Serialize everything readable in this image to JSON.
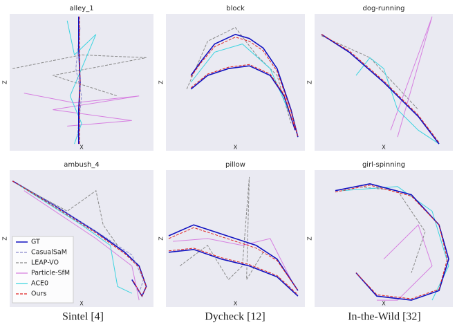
{
  "chart_data": [
    {
      "type": "line",
      "title": "alley_1",
      "xlabel": "X",
      "ylabel": "Z",
      "xlim": [
        0,
        1
      ],
      "ylim": [
        0,
        1
      ],
      "series": [
        {
          "name": "LEAP-VO",
          "color": "#888888",
          "dashed": true,
          "x": [
            0.02,
            0.5,
            0.95,
            0.3,
            0.75
          ],
          "values": [
            0.6,
            0.7,
            0.68,
            0.55,
            0.4
          ]
        },
        {
          "name": "Particle-SfM",
          "color": "#d67ee0",
          "dashed": false,
          "x": [
            0.1,
            0.45,
            0.9,
            0.3,
            0.85,
            0.4
          ],
          "values": [
            0.42,
            0.35,
            0.4,
            0.3,
            0.22,
            0.18
          ]
        },
        {
          "name": "ACE0",
          "color": "#3ad4e0",
          "dashed": false,
          "x": [
            0.4,
            0.45,
            0.6,
            0.42,
            0.5,
            0.45
          ],
          "values": [
            0.95,
            0.7,
            0.85,
            0.4,
            0.2,
            0.05
          ]
        },
        {
          "name": "CasualSaM",
          "color": "#8a8acb",
          "dashed": true,
          "x": [
            0.47,
            0.5,
            0.46,
            0.49
          ],
          "values": [
            0.1,
            0.4,
            0.6,
            0.9
          ]
        },
        {
          "name": "GT",
          "color": "#1010c0",
          "dashed": false,
          "x": [
            0.48,
            0.48,
            0.49,
            0.48,
            0.48
          ],
          "values": [
            0.05,
            0.3,
            0.5,
            0.75,
            0.98
          ]
        },
        {
          "name": "Ours",
          "color": "#e02020",
          "dashed": true,
          "x": [
            0.485,
            0.485,
            0.49,
            0.485,
            0.485
          ],
          "values": [
            0.05,
            0.3,
            0.5,
            0.75,
            0.98
          ]
        }
      ]
    },
    {
      "type": "line",
      "title": "block",
      "xlabel": "X",
      "ylabel": "Z",
      "xlim": [
        0,
        1
      ],
      "ylim": [
        0,
        1
      ],
      "series": [
        {
          "name": "LEAP-VO",
          "color": "#888888",
          "dashed": true,
          "x": [
            0.15,
            0.3,
            0.5,
            0.65,
            0.8,
            0.9
          ],
          "values": [
            0.45,
            0.8,
            0.9,
            0.7,
            0.55,
            0.2
          ]
        },
        {
          "name": "ACE0",
          "color": "#3ad4e0",
          "dashed": false,
          "x": [
            0.18,
            0.35,
            0.55,
            0.75,
            0.9
          ],
          "values": [
            0.5,
            0.72,
            0.78,
            0.6,
            0.25
          ]
        },
        {
          "name": "GT",
          "color": "#1010c0",
          "dashed": false,
          "x": [
            0.18,
            0.25,
            0.35,
            0.5,
            0.6,
            0.7,
            0.8,
            0.9,
            0.95,
            null,
            0.18,
            0.3,
            0.45,
            0.6,
            0.75,
            0.85,
            0.93
          ],
          "values": [
            0.55,
            0.65,
            0.78,
            0.85,
            0.82,
            0.75,
            0.6,
            0.3,
            0.1,
            null,
            0.45,
            0.55,
            0.6,
            0.62,
            0.55,
            0.4,
            0.15
          ]
        },
        {
          "name": "Ours",
          "color": "#e02020",
          "dashed": true,
          "x": [
            0.18,
            0.25,
            0.35,
            0.5,
            0.6,
            0.7,
            0.8,
            0.9,
            0.95,
            null,
            0.18,
            0.3,
            0.45,
            0.6,
            0.75,
            0.85,
            0.93
          ],
          "values": [
            0.54,
            0.64,
            0.76,
            0.83,
            0.8,
            0.73,
            0.58,
            0.29,
            0.1,
            null,
            0.46,
            0.56,
            0.61,
            0.63,
            0.56,
            0.41,
            0.16
          ]
        }
      ]
    },
    {
      "type": "line",
      "title": "dog-running",
      "xlabel": "X",
      "ylabel": "Z",
      "xlim": [
        0,
        1
      ],
      "ylim": [
        0,
        1
      ],
      "series": [
        {
          "name": "LEAP-VO",
          "color": "#888888",
          "dashed": true,
          "x": [
            0.05,
            0.4,
            0.75
          ],
          "values": [
            0.84,
            0.68,
            0.3
          ]
        },
        {
          "name": "Particle-SfM",
          "color": "#d67ee0",
          "dashed": false,
          "x": [
            0.55,
            0.85,
            0.6
          ],
          "values": [
            0.15,
            0.98,
            0.1
          ]
        },
        {
          "name": "ACE0",
          "color": "#3ad4e0",
          "dashed": false,
          "x": [
            0.3,
            0.4,
            0.5,
            0.6,
            0.75,
            0.9
          ],
          "values": [
            0.55,
            0.68,
            0.6,
            0.3,
            0.15,
            0.05
          ]
        },
        {
          "name": "GT",
          "color": "#1010c0",
          "dashed": false,
          "x": [
            0.05,
            0.25,
            0.5,
            0.75,
            0.9
          ],
          "values": [
            0.85,
            0.72,
            0.5,
            0.25,
            0.05
          ]
        },
        {
          "name": "Ours",
          "color": "#e02020",
          "dashed": true,
          "x": [
            0.05,
            0.25,
            0.5,
            0.75,
            0.9
          ],
          "values": [
            0.85,
            0.73,
            0.51,
            0.26,
            0.06
          ]
        }
      ]
    },
    {
      "type": "line",
      "title": "ambush_4",
      "xlabel": "X",
      "ylabel": "Z",
      "xlim": [
        0,
        1
      ],
      "ylim": [
        0,
        1
      ],
      "legend": "lower left",
      "series": [
        {
          "name": "GT",
          "color": "#1010c0",
          "dashed": false,
          "x": [
            0.02,
            0.3,
            0.6,
            0.8,
            0.9,
            0.95,
            0.92,
            0.85
          ],
          "values": [
            0.92,
            0.75,
            0.55,
            0.4,
            0.3,
            0.15,
            0.08,
            0.2
          ]
        },
        {
          "name": "CasualSaM",
          "color": "#8a8acb",
          "dashed": true,
          "x": [
            0.05,
            0.35,
            0.65,
            0.85,
            0.93,
            0.9
          ],
          "values": [
            0.9,
            0.72,
            0.52,
            0.38,
            0.2,
            0.1
          ]
        },
        {
          "name": "LEAP-VO",
          "color": "#888888",
          "dashed": true,
          "x": [
            0.05,
            0.4,
            0.6,
            0.65,
            0.75
          ],
          "values": [
            0.9,
            0.7,
            0.85,
            0.6,
            0.45
          ]
        },
        {
          "name": "Particle-SfM",
          "color": "#d67ee0",
          "dashed": false,
          "x": [
            0.1,
            0.6,
            0.85,
            0.9
          ],
          "values": [
            0.85,
            0.5,
            0.3,
            0.05
          ]
        },
        {
          "name": "ACE0",
          "color": "#3ad4e0",
          "dashed": false,
          "x": [
            0.05,
            0.5,
            0.7,
            0.75,
            0.85
          ],
          "values": [
            0.9,
            0.6,
            0.45,
            0.15,
            0.1
          ]
        },
        {
          "name": "Ours",
          "color": "#e02020",
          "dashed": true,
          "x": [
            0.02,
            0.3,
            0.6,
            0.8,
            0.9,
            0.95,
            0.92,
            0.86
          ],
          "values": [
            0.92,
            0.74,
            0.54,
            0.39,
            0.29,
            0.15,
            0.08,
            0.19
          ]
        }
      ]
    },
    {
      "type": "line",
      "title": "pillow",
      "xlabel": "X",
      "ylabel": "Z",
      "xlim": [
        0,
        1
      ],
      "ylim": [
        0,
        1
      ],
      "series": [
        {
          "name": "LEAP-VO",
          "color": "#888888",
          "dashed": true,
          "x": [
            0.1,
            0.3,
            0.45,
            0.55,
            0.6,
            0.58,
            0.7
          ],
          "values": [
            0.3,
            0.45,
            0.2,
            0.3,
            0.95,
            0.2,
            0.4
          ]
        },
        {
          "name": "Particle-SfM",
          "color": "#d67ee0",
          "dashed": false,
          "x": [
            0.05,
            0.3,
            0.55,
            0.75,
            0.9
          ],
          "values": [
            0.48,
            0.5,
            0.45,
            0.5,
            0.2
          ]
        },
        {
          "name": "GT",
          "color": "#1010c0",
          "dashed": false,
          "x": [
            0.02,
            0.2,
            0.35,
            0.5,
            0.65,
            0.8,
            0.95,
            null,
            0.02,
            0.2,
            0.4,
            0.6,
            0.8,
            0.95
          ],
          "values": [
            0.52,
            0.6,
            0.55,
            0.5,
            0.45,
            0.35,
            0.12,
            null,
            0.4,
            0.42,
            0.35,
            0.3,
            0.22,
            0.08
          ]
        },
        {
          "name": "Ours",
          "color": "#e02020",
          "dashed": true,
          "x": [
            0.02,
            0.2,
            0.35,
            0.5,
            0.65,
            0.8,
            0.95,
            null,
            0.02,
            0.2,
            0.4,
            0.6,
            0.8,
            0.95
          ],
          "values": [
            0.5,
            0.58,
            0.53,
            0.48,
            0.43,
            0.34,
            0.12,
            null,
            0.41,
            0.43,
            0.36,
            0.31,
            0.23,
            0.09
          ]
        }
      ]
    },
    {
      "type": "line",
      "title": "girl-spinning",
      "xlabel": "X",
      "ylabel": "Z",
      "xlim": [
        0,
        1
      ],
      "ylim": [
        0,
        1
      ],
      "series": [
        {
          "name": "LEAP-VO",
          "color": "#888888",
          "dashed": true,
          "x": [
            0.3,
            0.6,
            0.8,
            0.7
          ],
          "values": [
            0.88,
            0.85,
            0.55,
            0.25
          ]
        },
        {
          "name": "Particle-SfM",
          "color": "#d67ee0",
          "dashed": false,
          "x": [
            0.5,
            0.75,
            0.85,
            0.6,
            0.45
          ],
          "values": [
            0.35,
            0.6,
            0.3,
            0.05,
            0.05
          ]
        },
        {
          "name": "ACE0",
          "color": "#3ad4e0",
          "dashed": false,
          "x": [
            0.2,
            0.6,
            0.85,
            0.97,
            0.85
          ],
          "values": [
            0.85,
            0.88,
            0.7,
            0.3,
            0.05
          ]
        },
        {
          "name": "GT",
          "color": "#1010c0",
          "dashed": false,
          "x": [
            0.15,
            0.4,
            0.7,
            0.9,
            0.97,
            0.9,
            0.7,
            0.45,
            0.3
          ],
          "values": [
            0.85,
            0.9,
            0.82,
            0.6,
            0.35,
            0.12,
            0.05,
            0.08,
            0.25
          ]
        },
        {
          "name": "Ours",
          "color": "#e02020",
          "dashed": true,
          "x": [
            0.15,
            0.4,
            0.7,
            0.9,
            0.96,
            0.9,
            0.7,
            0.45,
            0.3
          ],
          "values": [
            0.84,
            0.89,
            0.81,
            0.6,
            0.35,
            0.13,
            0.06,
            0.09,
            0.25
          ]
        }
      ]
    }
  ],
  "captions": [
    "Sintel [4]",
    "Dycheck [12]",
    "In-the-Wild [32]"
  ]
}
